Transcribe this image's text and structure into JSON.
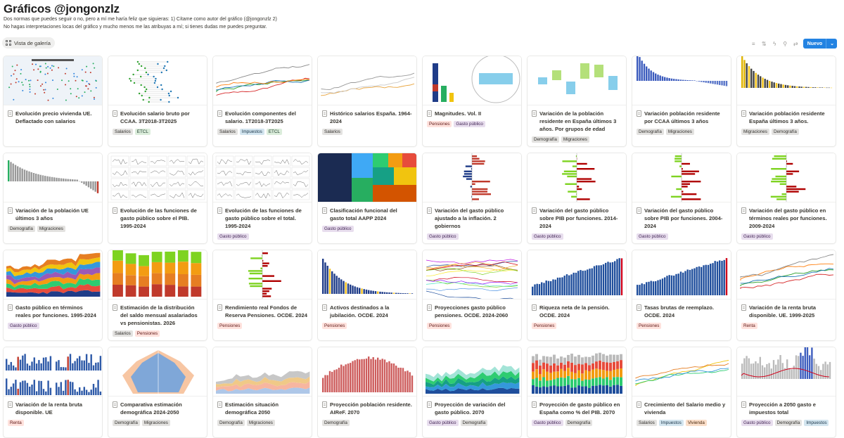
{
  "page": {
    "title": "Gráficos @jongonzlz",
    "description_line1": "Dos normas que puedes seguir o no, pero a mí me haría feliz que siguieras: 1) Cítame como autor del gráfico (@jongonzlz 2)",
    "description_line2": "No hagas interpretaciones locas del gráfico y mucho menos me las atribuyas a mí; si tienes dudas me puedes preguntar."
  },
  "view": {
    "label": "Vista de galería",
    "icon": "grid-icon"
  },
  "toolbar": {
    "icons": [
      "filter-icon",
      "sort-icon",
      "automation-icon",
      "search-icon",
      "settings-icon"
    ],
    "new_label": "Nuevo"
  },
  "tag_colors": {
    "Salarios": {
      "bg": "#e3e2e0",
      "fg": "#32302c"
    },
    "ETCL": {
      "bg": "#dbeddb",
      "fg": "#1c3829"
    },
    "Impuestos": {
      "bg": "#d3e5ef",
      "fg": "#183347"
    },
    "Pensiones": {
      "bg": "#ffe2dd",
      "fg": "#5d1715"
    },
    "Gasto público": {
      "bg": "#e8deee",
      "fg": "#412454"
    },
    "Demografía": {
      "bg": "#e3e2e0",
      "fg": "#32302c"
    },
    "Migraciones": {
      "bg": "#e3e2e0",
      "fg": "#32302c"
    },
    "Renta": {
      "bg": "#ffe2dd",
      "fg": "#5d1715"
    },
    "Vivienda": {
      "bg": "#fadec9",
      "fg": "#49290e"
    }
  },
  "cards": [
    {
      "title": "Evolución precio vivienda UE. Deflactado con salarios",
      "tags": [],
      "thumb": "map"
    },
    {
      "title": "Evolución salario bruto por CCAA. 3T2018-3T2025",
      "tags": [
        "Salarios",
        "ETCL"
      ],
      "thumb": "dots"
    },
    {
      "title": "Evolución componentes del salario. 1T2018-3T2025",
      "tags": [
        "Salarios",
        "Impuestos",
        "ETCL"
      ],
      "thumb": "lines"
    },
    {
      "title": "Histórico salarios España. 1964-2024",
      "tags": [
        "Salarios"
      ],
      "thumb": "lines2"
    },
    {
      "title": "Magnitudes. Vol. II",
      "tags": [
        "Pensiones",
        "Gasto público"
      ],
      "thumb": "magnitudes"
    },
    {
      "title": "Variación de la población residente en España últimos 3 años. Por grupos de edad",
      "tags": [
        "Demografía",
        "Migraciones"
      ],
      "thumb": "waterfall"
    },
    {
      "title": "Variación población residente por CCAA últimos 3 años",
      "tags": [
        "Demografía",
        "Migraciones"
      ],
      "thumb": "bars-desc"
    },
    {
      "title": "Variación población residente España últimos 3 años.",
      "tags": [
        "Migraciones",
        "Demografía"
      ],
      "thumb": "bars-yellow"
    },
    {
      "title": "Variación de la población UE últimos 3 años",
      "tags": [
        "Demografía",
        "Migraciones"
      ],
      "thumb": "bars-grey"
    },
    {
      "title": "Evolución de las funciones de gasto público sobre el PIB. 1995-2024",
      "tags": [],
      "thumb": "small-mult"
    },
    {
      "title": "Evolución de las funciones de gasto público sobre el total. 1995-2024",
      "tags": [
        "Gasto público"
      ],
      "thumb": "small-mult"
    },
    {
      "title": "Clasificación funcional del gasto total AAPP 2024",
      "tags": [
        "Gasto público"
      ],
      "thumb": "treemap"
    },
    {
      "title": "Variación del gasto público ajustado a la inflación. 2 gobiernos",
      "tags": [
        "Gasto público"
      ],
      "thumb": "hbars-redblue"
    },
    {
      "title": "Variación del gasto público sobre PIB por funciones. 2014-2024",
      "tags": [
        "Gasto público"
      ],
      "thumb": "hbars-redgreen"
    },
    {
      "title": "Variación del gasto público sobre PIB por funciones. 2004-2024",
      "tags": [
        "Gasto público"
      ],
      "thumb": "hbars-redgreen"
    },
    {
      "title": "Variación del gasto público en términos reales por funciones. 2009-2024",
      "tags": [
        "Gasto público"
      ],
      "thumb": "hbars-redgreen"
    },
    {
      "title": "Gasto público en términos reales por funciones. 1995-2024",
      "tags": [
        "Gasto público"
      ],
      "thumb": "stacked-area"
    },
    {
      "title": "Estimación de la distribución del saldo mensual asalariados vs pensionistas. 2026",
      "tags": [
        "Salarios",
        "Pensiones"
      ],
      "thumb": "stacked-bars"
    },
    {
      "title": "Rendimiento real Fondos de Reserva Pensiones. OCDE. 2024",
      "tags": [
        "Pensiones"
      ],
      "thumb": "hbars-yellow"
    },
    {
      "title": "Activos destinados a la jubilación. OCDE. 2024",
      "tags": [
        "Pensiones"
      ],
      "thumb": "bars-navy"
    },
    {
      "title": "Proyecciones gasto público pensiones. OCDE. 2024-2060",
      "tags": [
        "Pensiones"
      ],
      "thumb": "spaghetti"
    },
    {
      "title": "Riqueza neta de la pensión. OCDE. 2024",
      "tags": [
        "Pensiones"
      ],
      "thumb": "bars-asc"
    },
    {
      "title": "Tasas brutas de reemplazo. OCDE. 2024",
      "tags": [
        "Pensiones"
      ],
      "thumb": "bars-asc2"
    },
    {
      "title": "Variación de la renta bruta disponible. UE. 1999-2025",
      "tags": [
        "Renta"
      ],
      "thumb": "lines3"
    },
    {
      "title": "Variación de la renta bruta disponible. UE",
      "tags": [
        "Renta"
      ],
      "thumb": "multi-bars"
    },
    {
      "title": "Comparativa estimación demográfica 2024-2050",
      "tags": [
        "Demografía",
        "Migraciones"
      ],
      "thumb": "pyramid"
    },
    {
      "title": "Estimación situación demográfica 2050",
      "tags": [
        "Demografía",
        "Migraciones"
      ],
      "thumb": "area-demo"
    },
    {
      "title": "Proyección población residente. AIReF. 2070",
      "tags": [
        "Demografía"
      ],
      "thumb": "bars-red"
    },
    {
      "title": "Proyección de variación del gasto público. 2070",
      "tags": [
        "Gasto público",
        "Demografía"
      ],
      "thumb": "area-teal"
    },
    {
      "title": "Proyección de gasto público en España como % del PIB. 2070",
      "tags": [
        "Gasto público",
        "Demografía"
      ],
      "thumb": "stacked-bars2"
    },
    {
      "title": "Crecimiento del Salario medio y vivienda",
      "tags": [
        "Salarios",
        "Impuestos",
        "Vivienda"
      ],
      "thumb": "lines4"
    },
    {
      "title": "Proyección a 2050 gasto e impuestos total",
      "tags": [
        "Gasto público",
        "Demografía",
        "Impuestos"
      ],
      "thumb": "mixed"
    }
  ]
}
